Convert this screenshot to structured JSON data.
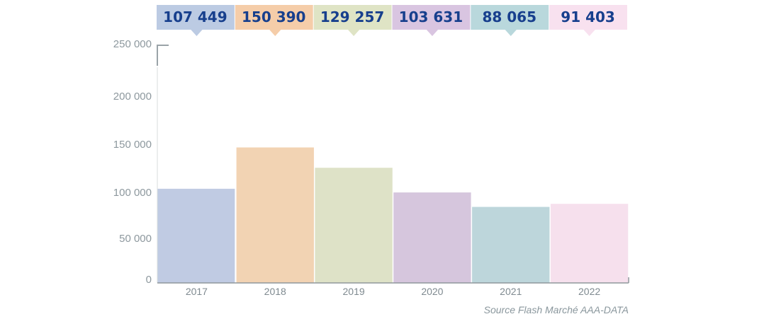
{
  "chart_data": {
    "type": "bar",
    "categories": [
      "2017",
      "2018",
      "2019",
      "2020",
      "2021",
      "2022"
    ],
    "values": [
      107449,
      150390,
      129257,
      103631,
      88065,
      91403
    ],
    "value_labels": [
      "107 449",
      "150 390",
      "129 257",
      "103 631",
      "88 065",
      "91 403"
    ],
    "y_ticks": [
      0,
      50000,
      100000,
      150000,
      200000,
      250000
    ],
    "y_tick_labels": [
      "0",
      "50 000",
      "100 000",
      "150 000",
      "200 000",
      "250 000"
    ],
    "ylim": [
      0,
      250000
    ],
    "grid": false,
    "colors": [
      "#c0cbe3",
      "#f2d3b3",
      "#dee2c7",
      "#d6c6dd",
      "#bdd6db",
      "#f6e0ed"
    ],
    "label_colors": [
      "#bccbe3",
      "#f5cda9",
      "#dfe4c5",
      "#d9c5e1",
      "#b9d8dc",
      "#f8e1ef"
    ],
    "value_label_color": "#173f8d",
    "source": "Source Flash Marché AAA-DATA"
  }
}
